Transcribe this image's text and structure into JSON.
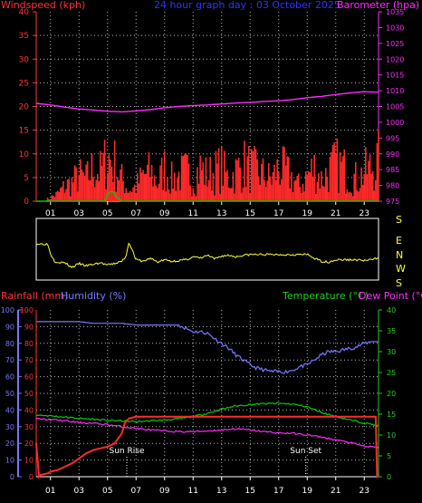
{
  "colors": {
    "wind": "#ff2a2a",
    "gust_avg": "#00cc00",
    "baro": "#ff2aff",
    "title": "#3333ff",
    "dir": "#ffff33",
    "rain": "#ff2a2a",
    "humidity": "#7777ff",
    "temp": "#00cc00",
    "dew": "#ff2aff",
    "axis": "#ffffff",
    "grid": "#b8b8b8",
    "left_axis": "#ff3333",
    "hum_axis": "#7777ff",
    "right_axis": "#22cc22"
  },
  "chart_data": [
    {
      "type": "line",
      "title": "24 hour graph day : 03 October 2025",
      "left_axis_label": "Windspeed (kph)",
      "right_axis_label": "Barometer (hpa)",
      "x_ticks": [
        "01",
        "03",
        "05",
        "07",
        "09",
        "11",
        "13",
        "15",
        "17",
        "19",
        "21",
        "23"
      ],
      "x_range": [
        0,
        24
      ],
      "wind_range": [
        0,
        40
      ],
      "wind_ticks": [
        0,
        5,
        10,
        15,
        20,
        25,
        30,
        35,
        40
      ],
      "baro_range": [
        975,
        1035
      ],
      "baro_ticks": [
        975,
        980,
        985,
        990,
        995,
        1000,
        1005,
        1010,
        1015,
        1020,
        1025,
        1030,
        1035
      ],
      "series": [
        {
          "name": "Barometer",
          "x": [
            0,
            1,
            2,
            3,
            4,
            5,
            6,
            7,
            8,
            9,
            10,
            11,
            12,
            13,
            14,
            15,
            16,
            17,
            18,
            19,
            20,
            21,
            22,
            23,
            24
          ],
          "values": [
            1006.0,
            1005.5,
            1004.8,
            1004.2,
            1003.9,
            1003.5,
            1003.3,
            1003.6,
            1004.0,
            1004.6,
            1005.0,
            1005.3,
            1005.5,
            1005.8,
            1006.1,
            1006.3,
            1006.6,
            1006.8,
            1007.2,
            1007.8,
            1008.2,
            1008.8,
            1009.3,
            1009.7,
            1009.5
          ]
        },
        {
          "name": "Windspeed",
          "x": [
            0,
            0.5,
            1,
            1.5,
            2,
            2.5,
            3,
            3.5,
            4,
            4.5,
            5,
            5.5,
            6,
            6.5,
            7,
            7.5,
            8,
            8.5,
            9,
            9.5,
            10,
            10.5,
            11,
            11.5,
            12,
            12.5,
            13,
            13.5,
            14,
            14.5,
            15,
            15.5,
            16,
            16.5,
            17,
            17.5,
            18,
            18.5,
            19,
            19.5,
            20,
            20.5,
            21,
            21.5,
            22,
            22.5,
            23,
            23.5,
            24
          ],
          "values": [
            0,
            0,
            1,
            2,
            4,
            5,
            7,
            6,
            9,
            8,
            12,
            10,
            6,
            3,
            4,
            7,
            8,
            5,
            9,
            6,
            7,
            8,
            6,
            9,
            7,
            8,
            9,
            6,
            8,
            10,
            9,
            8,
            7,
            6,
            9,
            8,
            6,
            4,
            7,
            9,
            6,
            8,
            10,
            9,
            7,
            6,
            8,
            9,
            11
          ]
        },
        {
          "name": "Gust average",
          "x": [
            0,
            4.8,
            5,
            5.2,
            5.4,
            5.6,
            6,
            10,
            24
          ],
          "values": [
            0,
            0,
            1.5,
            2,
            2,
            1,
            0,
            0,
            0
          ]
        }
      ]
    },
    {
      "type": "line",
      "title": "Wind direction",
      "dir_labels": [
        "S",
        "E",
        "N",
        "W",
        "S"
      ],
      "x_range": [
        0,
        24
      ],
      "y_range": [
        0,
        360
      ],
      "series": [
        {
          "name": "Direction",
          "x": [
            0,
            0.8,
            1,
            1.3,
            1.5,
            2,
            2.5,
            3,
            3.5,
            4,
            4.5,
            5,
            5.5,
            6,
            6.3,
            6.5,
            7,
            7.5,
            8,
            8.5,
            9,
            9.5,
            10,
            10.5,
            11,
            11.5,
            12,
            12.5,
            13,
            13.5,
            14,
            14.5,
            15,
            15.5,
            16,
            16.5,
            17,
            17.5,
            18,
            18.5,
            19,
            19.5,
            20,
            20.5,
            21,
            21.5,
            22,
            22.5,
            23,
            23.5,
            24
          ],
          "values": [
            215,
            215,
            150,
            100,
            95,
            90,
            60,
            85,
            70,
            80,
            90,
            75,
            85,
            100,
            135,
            230,
            110,
            100,
            120,
            95,
            110,
            100,
            105,
            110,
            130,
            120,
            140,
            115,
            135,
            140,
            130,
            140,
            145,
            145,
            145,
            145,
            145,
            145,
            145,
            145,
            145,
            120,
            100,
            95,
            110,
            110,
            110,
            110,
            105,
            110,
            125
          ]
        }
      ]
    },
    {
      "type": "line",
      "left_axis_label": "Rainfall (mm)",
      "hum_axis_label": "Humidity (%)",
      "right_axis_label": "Temperature (°C)",
      "right_axis_label2": "Dew Point (°C)",
      "sun_rise_label": "Sun Rise",
      "sun_set_label": "Sun Set",
      "sun_rise_x": 6.35,
      "sun_set_x": 18.9,
      "x_ticks": [
        "01",
        "03",
        "05",
        "07",
        "09",
        "11",
        "13",
        "15",
        "17",
        "19",
        "21",
        "23"
      ],
      "x_range": [
        0,
        24
      ],
      "rain_range": [
        0,
        100
      ],
      "rain_ticks": [
        0,
        10,
        20,
        30,
        40,
        50,
        60,
        70,
        80,
        90,
        100
      ],
      "temp_range": [
        0,
        40
      ],
      "temp_ticks": [
        0,
        5,
        10,
        15,
        20,
        25,
        30,
        35,
        40
      ],
      "series": [
        {
          "name": "Humidity",
          "x": [
            0,
            1,
            2,
            3,
            4,
            5,
            6,
            7,
            8,
            9,
            10,
            10.5,
            11,
            11.5,
            12,
            12.5,
            13,
            13.5,
            14,
            14.5,
            15,
            15.5,
            16,
            16.5,
            17,
            17.5,
            18,
            18.5,
            19,
            19.5,
            20,
            20.5,
            21,
            21.5,
            22,
            22.5,
            23,
            23.5,
            24
          ],
          "values": [
            93,
            93,
            93,
            93,
            92,
            92,
            92,
            91,
            91,
            91,
            91,
            89,
            87,
            87,
            86,
            83,
            80,
            77,
            73,
            70,
            67,
            65,
            64,
            63,
            63,
            63,
            64,
            66,
            67,
            70,
            73,
            75,
            75,
            76,
            77,
            78,
            80,
            81,
            81
          ]
        },
        {
          "name": "Temperature",
          "x": [
            0,
            1,
            2,
            3,
            4,
            5,
            6,
            7,
            8,
            9,
            10,
            11,
            12,
            13,
            14,
            15,
            16,
            17,
            18,
            19,
            20,
            21,
            22,
            23,
            24
          ],
          "values": [
            14.8,
            14.6,
            14.3,
            14.0,
            13.8,
            13.5,
            13.4,
            13.2,
            13.4,
            13.6,
            13.9,
            14.4,
            15.2,
            16.2,
            17.0,
            17.3,
            17.5,
            17.6,
            17.4,
            16.8,
            15.4,
            14.5,
            13.6,
            12.9,
            12.3
          ]
        },
        {
          "name": "Dew Point",
          "x": [
            0,
            1,
            2,
            3,
            4,
            5,
            6,
            7,
            8,
            9,
            10,
            11,
            12,
            13,
            14,
            15,
            16,
            17,
            18,
            19,
            20,
            21,
            22,
            23,
            24
          ],
          "values": [
            13.9,
            13.7,
            13.4,
            13.0,
            12.8,
            12.5,
            12.0,
            11.6,
            11.2,
            11.0,
            10.8,
            10.8,
            11.0,
            11.2,
            11.5,
            11.2,
            10.8,
            10.5,
            10.4,
            10.0,
            9.5,
            8.8,
            8.2,
            7.3,
            7.0
          ]
        },
        {
          "name": "Rainfall",
          "x": [
            0,
            0.2,
            0.3,
            0.8,
            1,
            1.5,
            2,
            2.5,
            3,
            3.5,
            4,
            4.5,
            5,
            5.5,
            6,
            6.2,
            6.5,
            7,
            8,
            9,
            10,
            11,
            12,
            13,
            14,
            15,
            16,
            17,
            18,
            19,
            20,
            21,
            22,
            23,
            23.8,
            23.9,
            24
          ],
          "values": [
            20,
            0,
            1,
            2,
            3,
            4,
            6,
            8,
            11,
            14,
            16,
            17,
            18,
            20,
            26,
            32,
            35,
            36,
            36,
            36,
            36,
            36,
            36,
            36,
            36,
            36,
            36,
            36,
            36,
            36,
            36,
            36,
            36,
            36,
            36,
            0,
            0
          ]
        }
      ]
    }
  ]
}
